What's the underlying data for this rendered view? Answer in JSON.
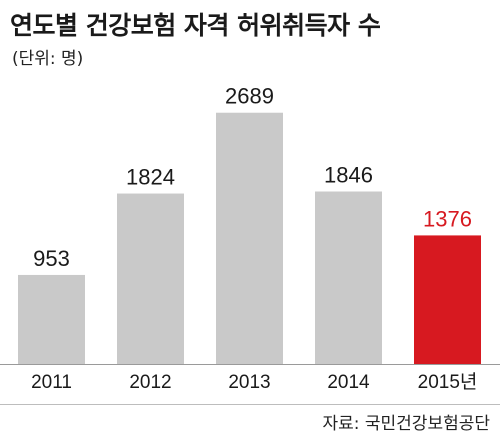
{
  "header": {
    "title": "연도별 건강보험 자격 허위취득자 수",
    "unit": "(단위: 명)"
  },
  "chart_data": {
    "type": "bar",
    "title": "연도별 건강보험 자격 허위취득자 수",
    "unit": "(단위: 명)",
    "categories": [
      "2011",
      "2012",
      "2013",
      "2014",
      "2015년"
    ],
    "values": [
      953,
      1824,
      2689,
      1846,
      1376
    ],
    "highlight_index": 4,
    "ylim": [
      0,
      2900
    ],
    "grid": false,
    "colors": {
      "bar": "#c9c9c9",
      "highlight": "#d71920",
      "label": "#1a1a1a",
      "highlight_label": "#d71920",
      "baseline": "#9a9a9a"
    }
  },
  "footer": {
    "source": "자료: 국민건강보험공단"
  }
}
